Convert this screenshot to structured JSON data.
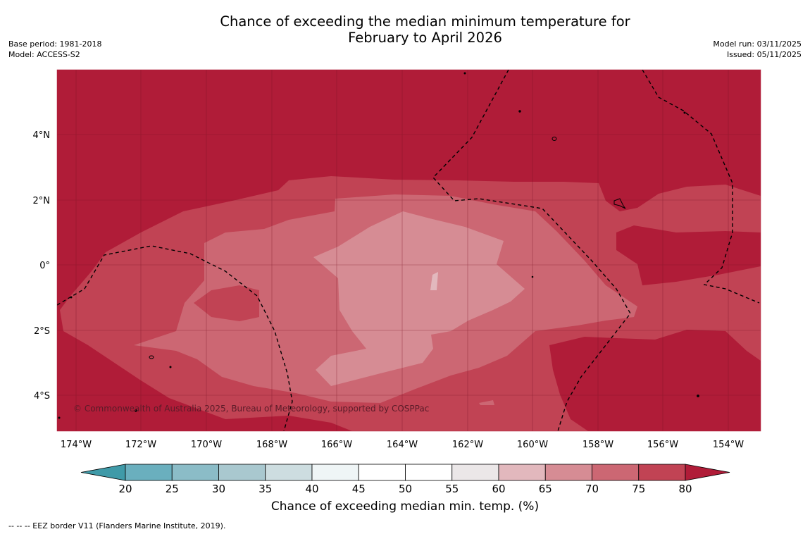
{
  "header": {
    "title_line1": "Chance of exceeding the median minimum temperature for",
    "title_line2": "February to April 2026",
    "base_period": "Base period: 1981-2018",
    "model": "Model: ACCESS-S2",
    "model_run": "Model run: 03/11/2025",
    "issued": "Issued: 05/11/2025"
  },
  "map": {
    "region_lon": [
      -174.6,
      -153.0
    ],
    "region_lat": [
      -5.2,
      5.9
    ],
    "lon_ticks": [
      "174°W",
      "172°W",
      "170°W",
      "168°W",
      "166°W",
      "164°W",
      "162°W",
      "160°W",
      "158°W",
      "156°W",
      "154°W"
    ],
    "lat_ticks": [
      "4°N",
      "2°N",
      "0°",
      "2°S",
      "4°S"
    ],
    "copyright": "© Commonwealth of Australia 2025, Bureau of Meteorology, supported by COSPPac",
    "colors": {
      "band_80_plus": "#b01c38",
      "band_75_80": "#c14354",
      "band_70_75": "#cc6773",
      "band_65_70": "#d68c94"
    }
  },
  "colorbar": {
    "title": "Chance of exceeding median min. temp. (%)",
    "tick_labels": [
      "20",
      "25",
      "30",
      "35",
      "40",
      "45",
      "50",
      "55",
      "60",
      "65",
      "70",
      "75",
      "80"
    ],
    "colors": [
      "#3f9aa8",
      "#6aafbe",
      "#8bbcc7",
      "#a9c8cf",
      "#cddde0",
      "#eff5f6",
      "#ffffff",
      "#ffffff",
      "#ebe7e8",
      "#e2b8bd",
      "#d68c94",
      "#cc6773",
      "#c14354",
      "#b01c38"
    ]
  },
  "footnote": "--  --  -- EEZ border V11 (Flanders Marine Institute, 2019)."
}
